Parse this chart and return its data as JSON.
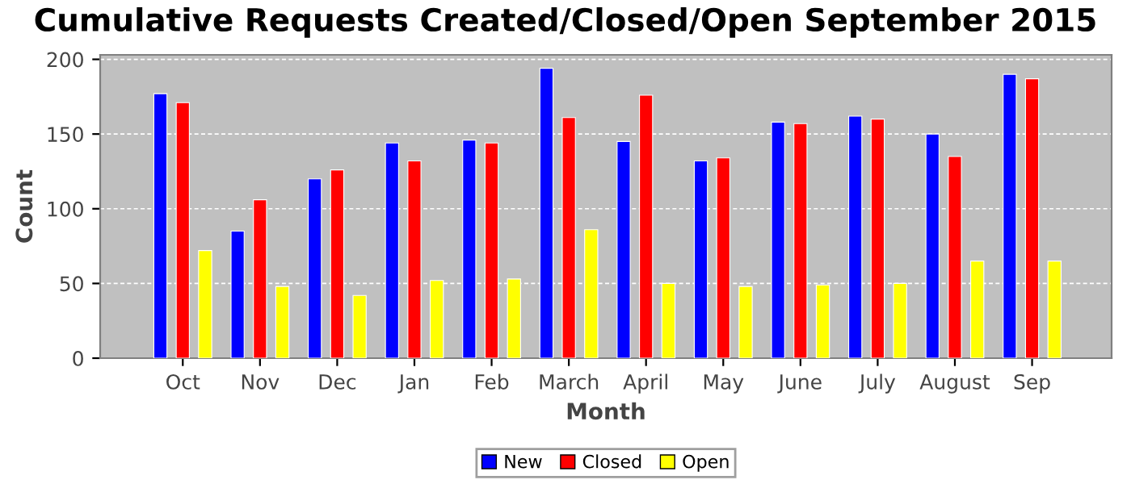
{
  "chart_data": {
    "type": "bar",
    "title": "Cumulative Requests Created/Closed/Open September 2015",
    "xlabel": "Month",
    "ylabel": "Count",
    "categories": [
      "Oct",
      "Nov",
      "Dec",
      "Jan",
      "Feb",
      "March",
      "April",
      "May",
      "June",
      "July",
      "August",
      "Sep"
    ],
    "series": [
      {
        "name": "New",
        "color": "#0000ff",
        "values": [
          177,
          85,
          120,
          144,
          146,
          194,
          145,
          132,
          158,
          162,
          150,
          190
        ]
      },
      {
        "name": "Closed",
        "color": "#ff0000",
        "values": [
          171,
          106,
          126,
          132,
          144,
          161,
          176,
          134,
          157,
          160,
          135,
          187
        ]
      },
      {
        "name": "Open",
        "color": "#ffff00",
        "values": [
          72,
          48,
          42,
          52,
          53,
          86,
          50,
          48,
          49,
          50,
          65,
          65
        ]
      }
    ],
    "ylim": [
      0,
      203
    ],
    "yticks": [
      0,
      50,
      100,
      150,
      200
    ],
    "grid": "y",
    "legend": "bottom"
  }
}
